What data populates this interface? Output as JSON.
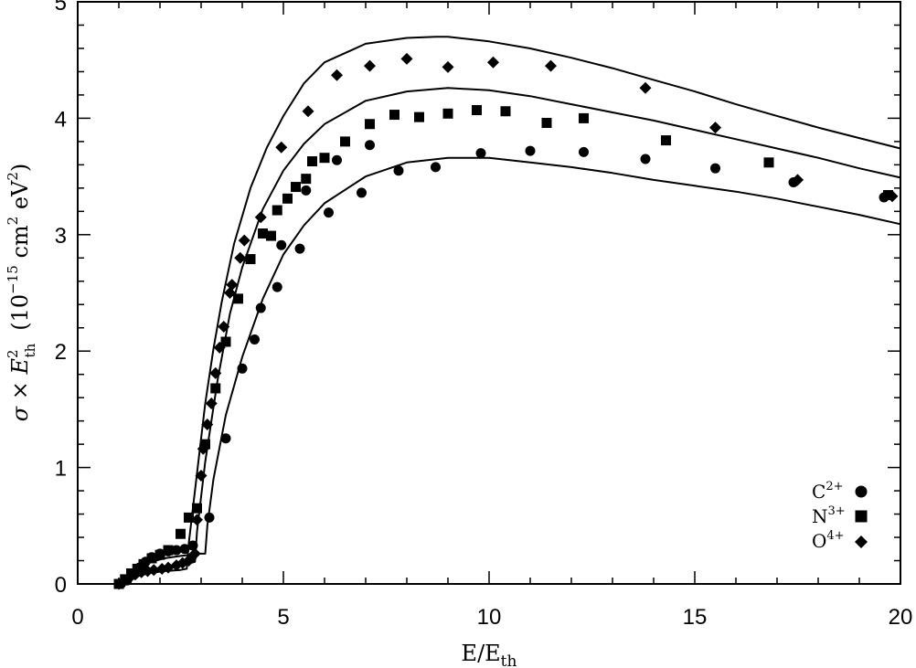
{
  "chart_data": {
    "type": "scatter",
    "title": "",
    "xlabel": {
      "base": "E/E",
      "sub": "th"
    },
    "ylabel": {
      "pre": "σ × E",
      "sup": "2",
      "sub": "th",
      "unit_pre": "(10",
      "unit_exp": "−15",
      "unit_mid": " cm",
      "unit_sup1": "2",
      "unit_ev": " eV",
      "unit_sup2": "2",
      "unit_post": ")"
    },
    "xlim": [
      0,
      20
    ],
    "ylim": [
      0,
      5
    ],
    "xticks": [
      0,
      5,
      10,
      15,
      20
    ],
    "yticks": [
      0,
      1,
      2,
      3,
      4,
      5
    ],
    "xtick_labels": [
      "0",
      "5",
      "10",
      "15",
      "20"
    ],
    "ytick_labels": [
      "0",
      "1",
      "2",
      "3",
      "4",
      "5"
    ],
    "grid": false,
    "legend_position": "bottom-right",
    "series": [
      {
        "name": "C",
        "sup": "2+",
        "marker": "circle",
        "points": [
          [
            1.05,
            0.0
          ],
          [
            1.2,
            0.03
          ],
          [
            1.35,
            0.08
          ],
          [
            1.5,
            0.14
          ],
          [
            1.65,
            0.19
          ],
          [
            1.8,
            0.23
          ],
          [
            2.0,
            0.26
          ],
          [
            2.2,
            0.28
          ],
          [
            2.4,
            0.29
          ],
          [
            2.6,
            0.3
          ],
          [
            2.8,
            0.33
          ],
          [
            3.2,
            0.57
          ],
          [
            3.6,
            1.25
          ],
          [
            4.0,
            1.85
          ],
          [
            4.3,
            2.1
          ],
          [
            4.45,
            2.37
          ],
          [
            4.85,
            2.55
          ],
          [
            4.95,
            2.91
          ],
          [
            5.4,
            2.88
          ],
          [
            5.55,
            3.38
          ],
          [
            6.1,
            3.19
          ],
          [
            6.3,
            3.64
          ],
          [
            6.9,
            3.36
          ],
          [
            7.1,
            3.77
          ],
          [
            7.8,
            3.55
          ],
          [
            8.7,
            3.58
          ],
          [
            9.8,
            3.7
          ],
          [
            11.0,
            3.72
          ],
          [
            12.3,
            3.71
          ],
          [
            13.8,
            3.65
          ],
          [
            15.5,
            3.57
          ],
          [
            17.4,
            3.45
          ],
          [
            19.6,
            3.32
          ]
        ]
      },
      {
        "name": "N",
        "sup": "3+",
        "marker": "square",
        "points": [
          [
            1.0,
            0.0
          ],
          [
            1.15,
            0.04
          ],
          [
            1.3,
            0.09
          ],
          [
            1.45,
            0.13
          ],
          [
            1.6,
            0.17
          ],
          [
            1.8,
            0.22
          ],
          [
            2.0,
            0.25
          ],
          [
            2.2,
            0.29
          ],
          [
            2.5,
            0.43
          ],
          [
            2.7,
            0.57
          ],
          [
            2.9,
            0.65
          ],
          [
            3.1,
            1.2
          ],
          [
            3.35,
            1.68
          ],
          [
            3.6,
            2.08
          ],
          [
            3.9,
            2.45
          ],
          [
            4.2,
            2.79
          ],
          [
            4.5,
            3.01
          ],
          [
            4.7,
            2.99
          ],
          [
            4.85,
            3.21
          ],
          [
            5.1,
            3.31
          ],
          [
            5.3,
            3.41
          ],
          [
            5.55,
            3.48
          ],
          [
            5.7,
            3.63
          ],
          [
            6.0,
            3.66
          ],
          [
            6.5,
            3.8
          ],
          [
            7.1,
            3.95
          ],
          [
            7.7,
            4.03
          ],
          [
            8.3,
            4.01
          ],
          [
            9.0,
            4.04
          ],
          [
            9.7,
            4.07
          ],
          [
            10.4,
            4.06
          ],
          [
            11.4,
            3.96
          ],
          [
            12.3,
            4.0
          ],
          [
            14.3,
            3.81
          ],
          [
            16.8,
            3.62
          ],
          [
            19.7,
            3.34
          ]
        ]
      },
      {
        "name": "O",
        "sup": "4+",
        "marker": "diamond",
        "points": [
          [
            1.0,
            0.0
          ],
          [
            1.1,
            0.02
          ],
          [
            1.25,
            0.05
          ],
          [
            1.4,
            0.08
          ],
          [
            1.55,
            0.1
          ],
          [
            1.7,
            0.11
          ],
          [
            1.85,
            0.12
          ],
          [
            2.05,
            0.13
          ],
          [
            2.2,
            0.14
          ],
          [
            2.4,
            0.16
          ],
          [
            2.55,
            0.18
          ],
          [
            2.7,
            0.2
          ],
          [
            2.75,
            0.22
          ],
          [
            2.85,
            0.26
          ],
          [
            2.9,
            0.55
          ],
          [
            3.0,
            0.93
          ],
          [
            3.05,
            1.16
          ],
          [
            3.15,
            1.37
          ],
          [
            3.25,
            1.55
          ],
          [
            3.35,
            1.81
          ],
          [
            3.45,
            2.03
          ],
          [
            3.55,
            2.21
          ],
          [
            3.7,
            2.5
          ],
          [
            3.75,
            2.57
          ],
          [
            3.95,
            2.8
          ],
          [
            4.05,
            2.95
          ],
          [
            4.45,
            3.15
          ],
          [
            4.95,
            3.75
          ],
          [
            5.6,
            4.06
          ],
          [
            6.3,
            4.37
          ],
          [
            7.1,
            4.45
          ],
          [
            8.0,
            4.51
          ],
          [
            9.0,
            4.44
          ],
          [
            10.1,
            4.48
          ],
          [
            11.5,
            4.45
          ],
          [
            13.8,
            4.26
          ],
          [
            15.5,
            3.92
          ],
          [
            17.5,
            3.47
          ],
          [
            19.8,
            3.33
          ]
        ]
      }
    ],
    "curves": [
      {
        "for": "C",
        "points": [
          [
            1.0,
            0.0
          ],
          [
            1.3,
            0.1
          ],
          [
            1.7,
            0.18
          ],
          [
            2.1,
            0.22
          ],
          [
            2.5,
            0.24
          ],
          [
            2.75,
            0.25
          ],
          [
            2.8,
            0.26
          ],
          [
            3.0,
            0.26
          ],
          [
            3.1,
            0.26
          ],
          [
            3.15,
            0.5
          ],
          [
            3.3,
            0.9
          ],
          [
            3.6,
            1.45
          ],
          [
            4.0,
            1.95
          ],
          [
            4.5,
            2.45
          ],
          [
            5.0,
            2.83
          ],
          [
            5.5,
            3.08
          ],
          [
            6.0,
            3.27
          ],
          [
            7.0,
            3.5
          ],
          [
            8.0,
            3.62
          ],
          [
            9.0,
            3.66
          ],
          [
            10.0,
            3.66
          ],
          [
            11.0,
            3.62
          ],
          [
            12.0,
            3.58
          ],
          [
            13.0,
            3.53
          ],
          [
            14.0,
            3.47
          ],
          [
            15.0,
            3.42
          ],
          [
            16.0,
            3.37
          ],
          [
            17.0,
            3.31
          ],
          [
            18.0,
            3.24
          ],
          [
            19.0,
            3.17
          ],
          [
            20.0,
            3.09
          ]
        ]
      },
      {
        "for": "N",
        "points": [
          [
            1.0,
            0.0
          ],
          [
            1.3,
            0.06
          ],
          [
            1.7,
            0.11
          ],
          [
            2.1,
            0.15
          ],
          [
            2.5,
            0.17
          ],
          [
            2.75,
            0.18
          ],
          [
            2.85,
            0.19
          ],
          [
            2.9,
            0.45
          ],
          [
            3.1,
            1.05
          ],
          [
            3.4,
            1.75
          ],
          [
            3.7,
            2.32
          ],
          [
            4.0,
            2.72
          ],
          [
            4.5,
            3.22
          ],
          [
            5.0,
            3.55
          ],
          [
            5.5,
            3.78
          ],
          [
            6.0,
            3.95
          ],
          [
            7.0,
            4.15
          ],
          [
            8.0,
            4.23
          ],
          [
            9.0,
            4.26
          ],
          [
            10.0,
            4.24
          ],
          [
            11.0,
            4.19
          ],
          [
            12.0,
            4.12
          ],
          [
            13.0,
            4.05
          ],
          [
            14.0,
            3.98
          ],
          [
            15.0,
            3.9
          ],
          [
            16.0,
            3.82
          ],
          [
            17.0,
            3.74
          ],
          [
            18.0,
            3.66
          ],
          [
            19.0,
            3.57
          ],
          [
            20.0,
            3.49
          ]
        ]
      },
      {
        "for": "O",
        "points": [
          [
            1.0,
            0.0
          ],
          [
            1.3,
            0.05
          ],
          [
            1.7,
            0.09
          ],
          [
            2.1,
            0.11
          ],
          [
            2.5,
            0.12
          ],
          [
            2.65,
            0.13
          ],
          [
            2.7,
            0.35
          ],
          [
            2.9,
            0.95
          ],
          [
            3.1,
            1.55
          ],
          [
            3.3,
            2.02
          ],
          [
            3.5,
            2.42
          ],
          [
            3.8,
            2.92
          ],
          [
            4.2,
            3.4
          ],
          [
            4.6,
            3.75
          ],
          [
            5.0,
            4.02
          ],
          [
            5.5,
            4.3
          ],
          [
            6.0,
            4.48
          ],
          [
            7.0,
            4.64
          ],
          [
            8.0,
            4.69
          ],
          [
            8.7,
            4.7
          ],
          [
            9.0,
            4.7
          ],
          [
            10.0,
            4.66
          ],
          [
            11.0,
            4.6
          ],
          [
            12.0,
            4.52
          ],
          [
            13.0,
            4.43
          ],
          [
            14.0,
            4.33
          ],
          [
            15.0,
            4.23
          ],
          [
            16.0,
            4.12
          ],
          [
            17.0,
            4.02
          ],
          [
            18.0,
            3.92
          ],
          [
            19.0,
            3.83
          ],
          [
            20.0,
            3.74
          ]
        ]
      }
    ]
  }
}
